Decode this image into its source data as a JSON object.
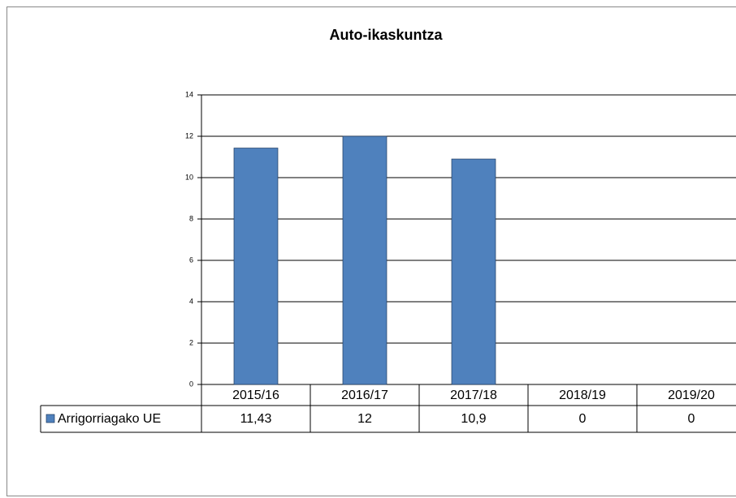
{
  "chart_data": {
    "type": "bar",
    "title": "Auto-ikaskuntza",
    "categories": [
      "2015/16",
      "2016/17",
      "2017/18",
      "2018/19",
      "2019/20"
    ],
    "series": [
      {
        "name": "Arrigorriagako UE",
        "color": "#4f81bd",
        "values": [
          11.43,
          12,
          10.9,
          0,
          0
        ],
        "value_labels": [
          "11,43",
          "12",
          "10,9",
          "0",
          "0"
        ]
      }
    ],
    "ylim": [
      0,
      14
    ],
    "yticks": [
      0,
      2,
      4,
      6,
      8,
      10,
      12,
      14
    ],
    "grid": true,
    "data_table": true
  }
}
